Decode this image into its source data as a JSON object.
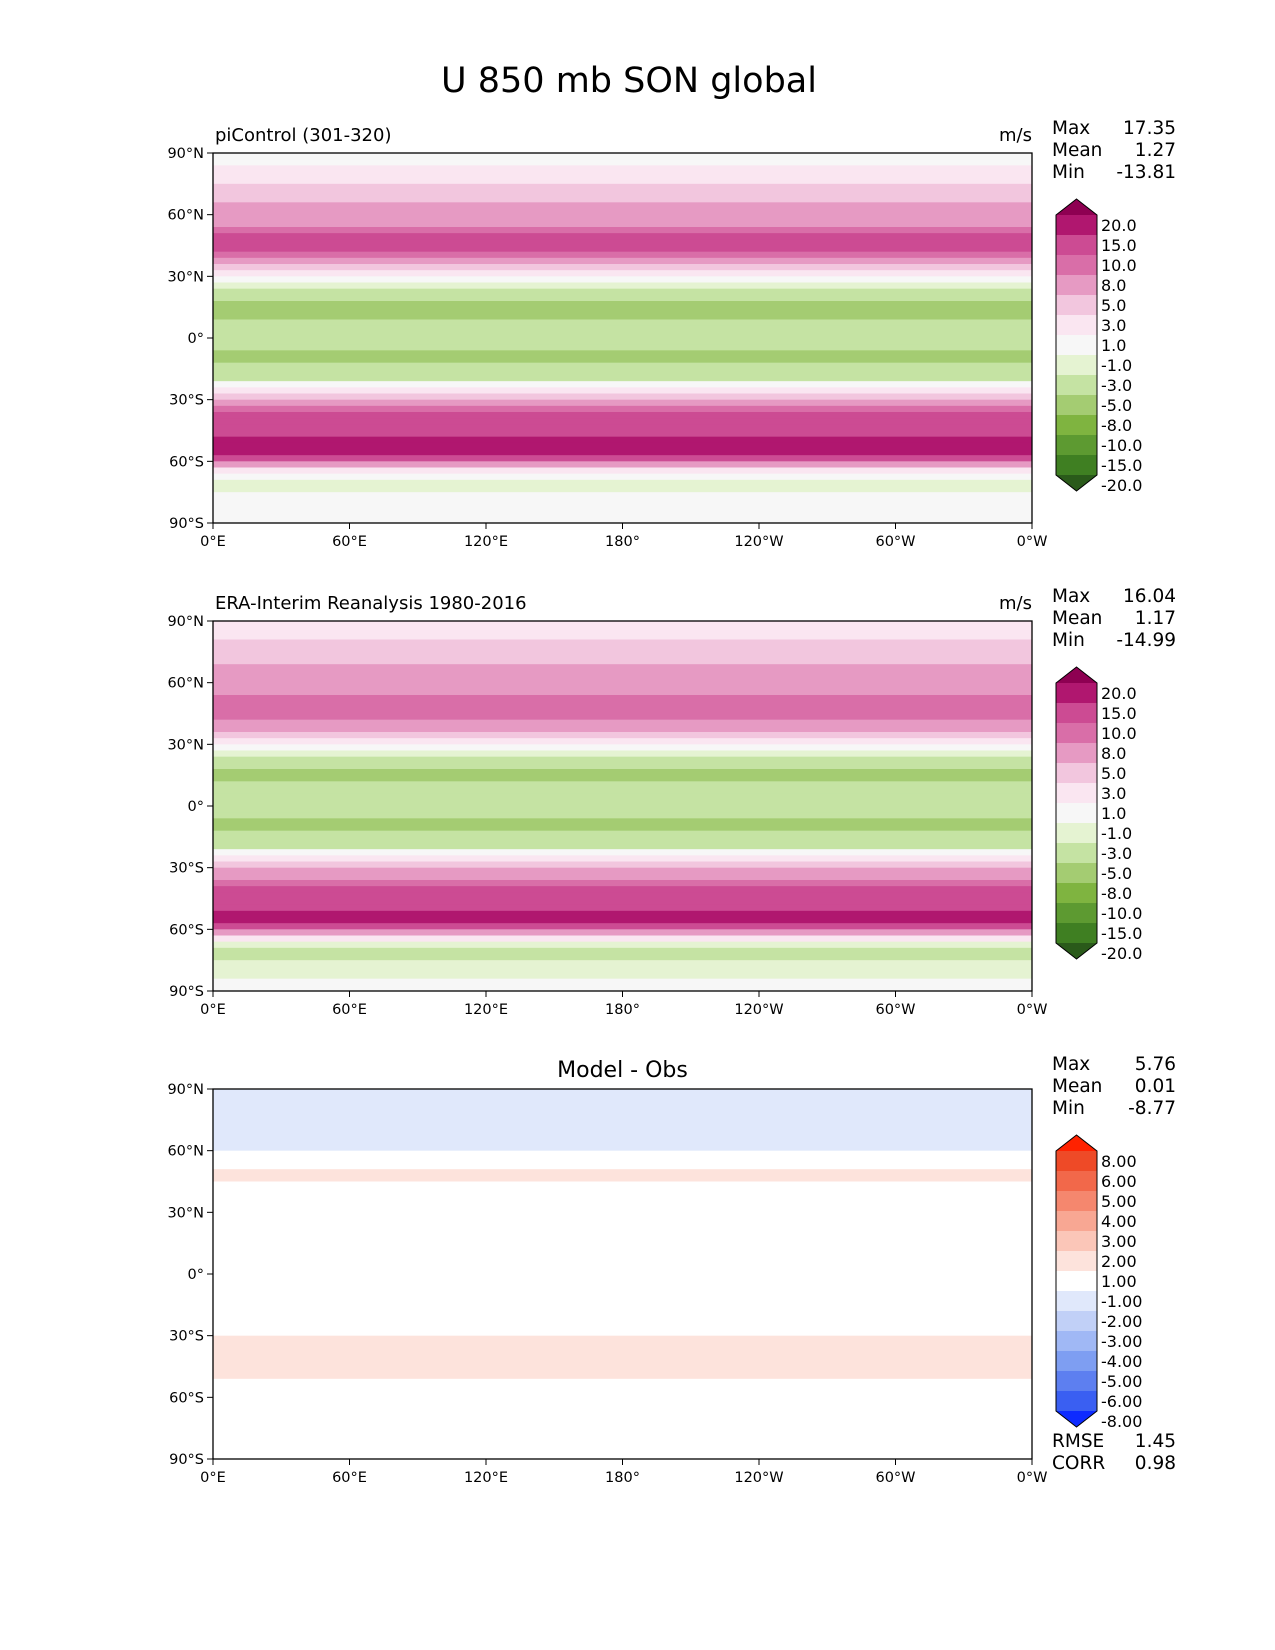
{
  "figure_title": "U 850 mb SON global",
  "lon_ticks": [
    "0°E",
    "60°E",
    "120°E",
    "180°",
    "120°W",
    "60°W",
    "0°W"
  ],
  "lat_ticks": [
    "90°N",
    "60°N",
    "30°N",
    "0°",
    "30°S",
    "60°S",
    "90°S"
  ],
  "stat_labels": {
    "max": "Max",
    "mean": "Mean",
    "min": "Min",
    "rmse": "RMSE",
    "corr": "CORR"
  },
  "colors": {
    "field_scale": [
      "#2a5a1a",
      "#3f7f22",
      "#5d9a31",
      "#7fb440",
      "#a4cc72",
      "#c5e3a3",
      "#e5f3d2",
      "#f7f7f7",
      "#fae6f1",
      "#f2c6de",
      "#e69ac3",
      "#d96ea8",
      "#cc4b93",
      "#b0176f",
      "#8e0052"
    ],
    "diff_scale": [
      "#0d2bff",
      "#3a5ff2",
      "#5d7ff0",
      "#7e9ef2",
      "#a0b8f5",
      "#c1d0f7",
      "#e0e8fb",
      "#ffffff",
      "#fde3dc",
      "#fbc6b8",
      "#f8a793",
      "#f5876e",
      "#f2684a",
      "#ee4a27",
      "#ff2200"
    ]
  },
  "chart_data": [
    {
      "type": "heatmap",
      "title_left": "piControl (301-320)",
      "title_right": "m/s",
      "stats": {
        "max": "17.35",
        "mean": "1.27",
        "min": "-13.81"
      },
      "colorbar_labels": [
        "20.0",
        "15.0",
        "10.0",
        "8.0",
        "5.0",
        "3.0",
        "1.0",
        "-1.0",
        "-3.0",
        "-5.0",
        "-8.0",
        "-10.0",
        "-15.0",
        "-20.0"
      ],
      "lon_range": [
        0,
        360
      ],
      "lat_range": [
        -90,
        90
      ],
      "zonal_mean_profile": {
        "lat": [
          90,
          75,
          60,
          50,
          45,
          35,
          25,
          15,
          5,
          0,
          -10,
          -20,
          -30,
          -40,
          -50,
          -55,
          -60,
          -65,
          -70,
          -80,
          -90
        ],
        "value": [
          0,
          3,
          6,
          10,
          11,
          5,
          -3,
          -6,
          -4,
          -4,
          -6,
          -3,
          6,
          12,
          16,
          17,
          10,
          2,
          -2,
          0,
          0
        ]
      }
    },
    {
      "type": "heatmap",
      "title_left": "ERA-Interim Reanalysis 1980-2016",
      "title_right": "m/s",
      "stats": {
        "max": "16.04",
        "mean": "1.17",
        "min": "-14.99"
      },
      "colorbar_labels": [
        "20.0",
        "15.0",
        "10.0",
        "8.0",
        "5.0",
        "3.0",
        "1.0",
        "-1.0",
        "-3.0",
        "-5.0",
        "-8.0",
        "-10.0",
        "-15.0",
        "-20.0"
      ],
      "lon_range": [
        0,
        360
      ],
      "lat_range": [
        -90,
        90
      ],
      "zonal_mean_profile": {
        "lat": [
          90,
          75,
          60,
          50,
          45,
          35,
          25,
          15,
          5,
          0,
          -10,
          -20,
          -30,
          -40,
          -50,
          -55,
          -60,
          -65,
          -70,
          -80,
          -90
        ],
        "value": [
          1,
          4,
          6,
          9,
          10,
          5,
          -3,
          -6,
          -3,
          -4,
          -6,
          -3,
          5,
          11,
          15,
          16,
          10,
          1,
          -4,
          -2,
          0
        ]
      }
    },
    {
      "type": "heatmap",
      "title_center": "Model - Obs",
      "stats": {
        "max": "5.76",
        "mean": "0.01",
        "min": "-8.77",
        "rmse": "1.45",
        "corr": "0.98"
      },
      "colorbar_labels": [
        "8.00",
        "6.00",
        "5.00",
        "4.00",
        "3.00",
        "2.00",
        "1.00",
        "-1.00",
        "-2.00",
        "-3.00",
        "-4.00",
        "-5.00",
        "-6.00",
        "-8.00"
      ],
      "lon_range": [
        0,
        360
      ],
      "lat_range": [
        -90,
        90
      ],
      "zonal_mean_profile": {
        "lat": [
          90,
          75,
          60,
          50,
          45,
          35,
          25,
          15,
          5,
          0,
          -10,
          -20,
          -30,
          -40,
          -50,
          -55,
          -60,
          -65,
          -70,
          -80,
          -90
        ],
        "value": [
          -1,
          -2,
          -1,
          1,
          1,
          0,
          0,
          -1,
          -1,
          -1,
          0,
          0,
          1,
          2,
          1,
          0,
          0,
          0,
          1,
          0,
          0
        ]
      }
    }
  ]
}
